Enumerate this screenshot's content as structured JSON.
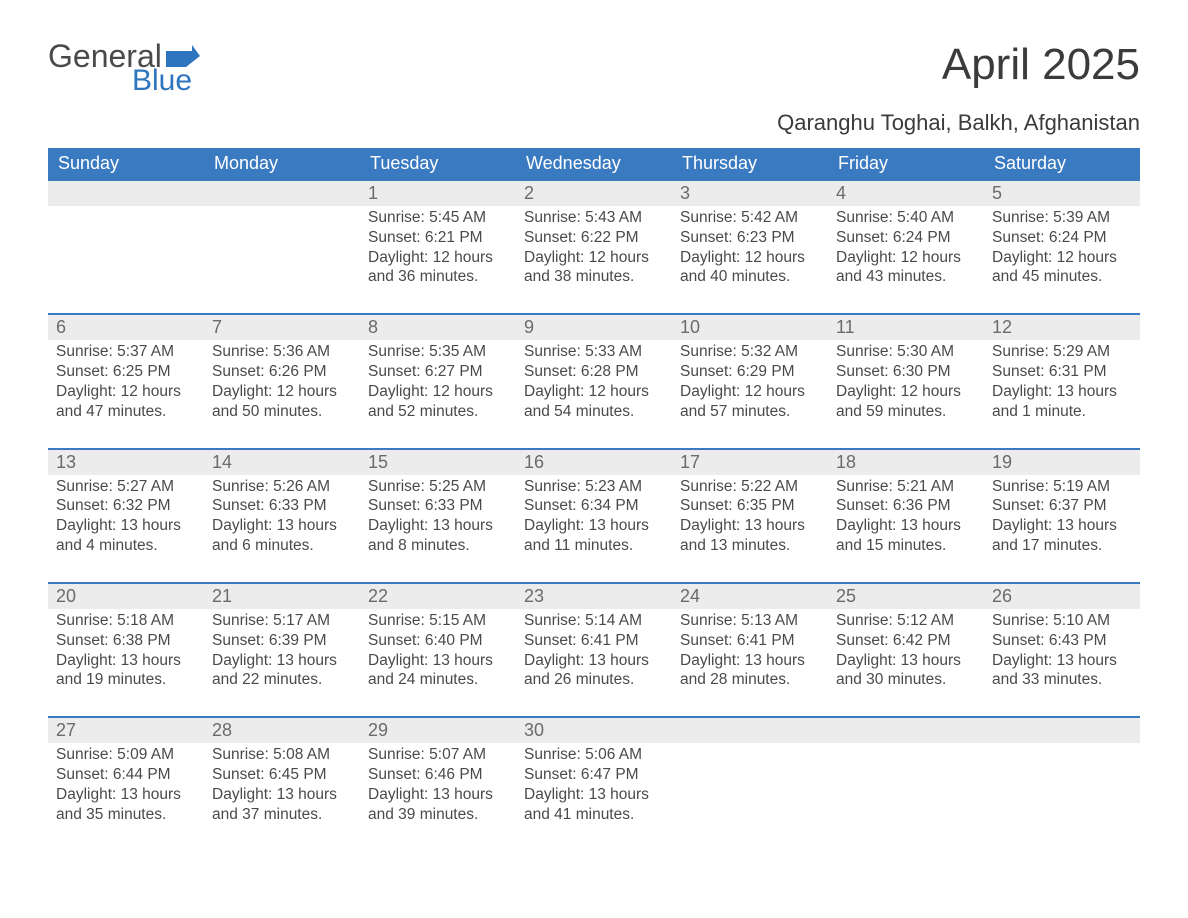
{
  "logo": {
    "text1": "General",
    "text2": "Blue",
    "blue_color": "#2e75c0",
    "flag_color": "#2e75c0"
  },
  "title": "April 2025",
  "location": "Qaranghu Toghai, Balkh, Afghanistan",
  "colors": {
    "header_bg": "#3a7ac0",
    "header_text": "#ffffff",
    "week_border": "#3a7ac0",
    "daynum_bg": "#ececec",
    "body_text": "#4a4a4a"
  },
  "weekdays": [
    "Sunday",
    "Monday",
    "Tuesday",
    "Wednesday",
    "Thursday",
    "Friday",
    "Saturday"
  ],
  "weeks": [
    [
      {
        "n": "",
        "sr": "",
        "ss": "",
        "dl1": "",
        "dl2": ""
      },
      {
        "n": "",
        "sr": "",
        "ss": "",
        "dl1": "",
        "dl2": ""
      },
      {
        "n": "1",
        "sr": "Sunrise: 5:45 AM",
        "ss": "Sunset: 6:21 PM",
        "dl1": "Daylight: 12 hours",
        "dl2": "and 36 minutes."
      },
      {
        "n": "2",
        "sr": "Sunrise: 5:43 AM",
        "ss": "Sunset: 6:22 PM",
        "dl1": "Daylight: 12 hours",
        "dl2": "and 38 minutes."
      },
      {
        "n": "3",
        "sr": "Sunrise: 5:42 AM",
        "ss": "Sunset: 6:23 PM",
        "dl1": "Daylight: 12 hours",
        "dl2": "and 40 minutes."
      },
      {
        "n": "4",
        "sr": "Sunrise: 5:40 AM",
        "ss": "Sunset: 6:24 PM",
        "dl1": "Daylight: 12 hours",
        "dl2": "and 43 minutes."
      },
      {
        "n": "5",
        "sr": "Sunrise: 5:39 AM",
        "ss": "Sunset: 6:24 PM",
        "dl1": "Daylight: 12 hours",
        "dl2": "and 45 minutes."
      }
    ],
    [
      {
        "n": "6",
        "sr": "Sunrise: 5:37 AM",
        "ss": "Sunset: 6:25 PM",
        "dl1": "Daylight: 12 hours",
        "dl2": "and 47 minutes."
      },
      {
        "n": "7",
        "sr": "Sunrise: 5:36 AM",
        "ss": "Sunset: 6:26 PM",
        "dl1": "Daylight: 12 hours",
        "dl2": "and 50 minutes."
      },
      {
        "n": "8",
        "sr": "Sunrise: 5:35 AM",
        "ss": "Sunset: 6:27 PM",
        "dl1": "Daylight: 12 hours",
        "dl2": "and 52 minutes."
      },
      {
        "n": "9",
        "sr": "Sunrise: 5:33 AM",
        "ss": "Sunset: 6:28 PM",
        "dl1": "Daylight: 12 hours",
        "dl2": "and 54 minutes."
      },
      {
        "n": "10",
        "sr": "Sunrise: 5:32 AM",
        "ss": "Sunset: 6:29 PM",
        "dl1": "Daylight: 12 hours",
        "dl2": "and 57 minutes."
      },
      {
        "n": "11",
        "sr": "Sunrise: 5:30 AM",
        "ss": "Sunset: 6:30 PM",
        "dl1": "Daylight: 12 hours",
        "dl2": "and 59 minutes."
      },
      {
        "n": "12",
        "sr": "Sunrise: 5:29 AM",
        "ss": "Sunset: 6:31 PM",
        "dl1": "Daylight: 13 hours",
        "dl2": "and 1 minute."
      }
    ],
    [
      {
        "n": "13",
        "sr": "Sunrise: 5:27 AM",
        "ss": "Sunset: 6:32 PM",
        "dl1": "Daylight: 13 hours",
        "dl2": "and 4 minutes."
      },
      {
        "n": "14",
        "sr": "Sunrise: 5:26 AM",
        "ss": "Sunset: 6:33 PM",
        "dl1": "Daylight: 13 hours",
        "dl2": "and 6 minutes."
      },
      {
        "n": "15",
        "sr": "Sunrise: 5:25 AM",
        "ss": "Sunset: 6:33 PM",
        "dl1": "Daylight: 13 hours",
        "dl2": "and 8 minutes."
      },
      {
        "n": "16",
        "sr": "Sunrise: 5:23 AM",
        "ss": "Sunset: 6:34 PM",
        "dl1": "Daylight: 13 hours",
        "dl2": "and 11 minutes."
      },
      {
        "n": "17",
        "sr": "Sunrise: 5:22 AM",
        "ss": "Sunset: 6:35 PM",
        "dl1": "Daylight: 13 hours",
        "dl2": "and 13 minutes."
      },
      {
        "n": "18",
        "sr": "Sunrise: 5:21 AM",
        "ss": "Sunset: 6:36 PM",
        "dl1": "Daylight: 13 hours",
        "dl2": "and 15 minutes."
      },
      {
        "n": "19",
        "sr": "Sunrise: 5:19 AM",
        "ss": "Sunset: 6:37 PM",
        "dl1": "Daylight: 13 hours",
        "dl2": "and 17 minutes."
      }
    ],
    [
      {
        "n": "20",
        "sr": "Sunrise: 5:18 AM",
        "ss": "Sunset: 6:38 PM",
        "dl1": "Daylight: 13 hours",
        "dl2": "and 19 minutes."
      },
      {
        "n": "21",
        "sr": "Sunrise: 5:17 AM",
        "ss": "Sunset: 6:39 PM",
        "dl1": "Daylight: 13 hours",
        "dl2": "and 22 minutes."
      },
      {
        "n": "22",
        "sr": "Sunrise: 5:15 AM",
        "ss": "Sunset: 6:40 PM",
        "dl1": "Daylight: 13 hours",
        "dl2": "and 24 minutes."
      },
      {
        "n": "23",
        "sr": "Sunrise: 5:14 AM",
        "ss": "Sunset: 6:41 PM",
        "dl1": "Daylight: 13 hours",
        "dl2": "and 26 minutes."
      },
      {
        "n": "24",
        "sr": "Sunrise: 5:13 AM",
        "ss": "Sunset: 6:41 PM",
        "dl1": "Daylight: 13 hours",
        "dl2": "and 28 minutes."
      },
      {
        "n": "25",
        "sr": "Sunrise: 5:12 AM",
        "ss": "Sunset: 6:42 PM",
        "dl1": "Daylight: 13 hours",
        "dl2": "and 30 minutes."
      },
      {
        "n": "26",
        "sr": "Sunrise: 5:10 AM",
        "ss": "Sunset: 6:43 PM",
        "dl1": "Daylight: 13 hours",
        "dl2": "and 33 minutes."
      }
    ],
    [
      {
        "n": "27",
        "sr": "Sunrise: 5:09 AM",
        "ss": "Sunset: 6:44 PM",
        "dl1": "Daylight: 13 hours",
        "dl2": "and 35 minutes."
      },
      {
        "n": "28",
        "sr": "Sunrise: 5:08 AM",
        "ss": "Sunset: 6:45 PM",
        "dl1": "Daylight: 13 hours",
        "dl2": "and 37 minutes."
      },
      {
        "n": "29",
        "sr": "Sunrise: 5:07 AM",
        "ss": "Sunset: 6:46 PM",
        "dl1": "Daylight: 13 hours",
        "dl2": "and 39 minutes."
      },
      {
        "n": "30",
        "sr": "Sunrise: 5:06 AM",
        "ss": "Sunset: 6:47 PM",
        "dl1": "Daylight: 13 hours",
        "dl2": "and 41 minutes."
      },
      {
        "n": "",
        "sr": "",
        "ss": "",
        "dl1": "",
        "dl2": ""
      },
      {
        "n": "",
        "sr": "",
        "ss": "",
        "dl1": "",
        "dl2": ""
      },
      {
        "n": "",
        "sr": "",
        "ss": "",
        "dl1": "",
        "dl2": ""
      }
    ]
  ]
}
